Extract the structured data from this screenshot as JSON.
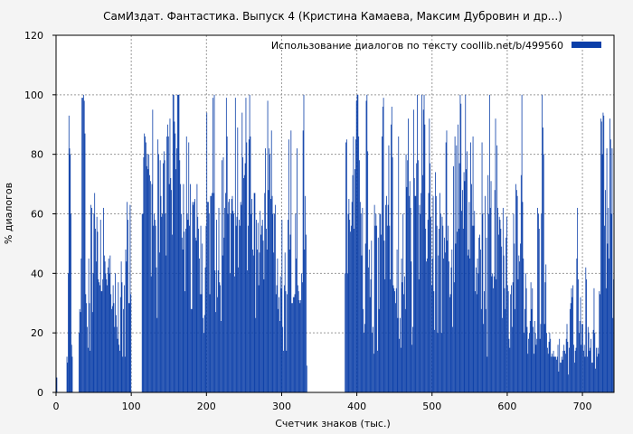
{
  "chart_data": {
    "type": "bar",
    "title": "СамИздат. Фантастика. Выпуск 4 (Кристина Камаева, Максим Дубровин и др...)",
    "xlabel": "Счетчик знаков (тыс.)",
    "ylabel": "% диалогов",
    "xlim": [
      0,
      742
    ],
    "ylim": [
      0,
      120
    ],
    "xticks": [
      0,
      100,
      200,
      300,
      400,
      500,
      600,
      700
    ],
    "yticks": [
      0,
      20,
      40,
      60,
      80,
      100,
      120
    ],
    "grid": true,
    "legend_position": "top-right",
    "bar_color": "#0a3ea8",
    "series": [
      {
        "name": "Использование диалогов по тексту  coollib.net/b/499560",
        "segments": [
          {
            "x_start": 0,
            "x_end": 2,
            "values": [
              5
            ]
          },
          {
            "x_start": 14,
            "x_end": 22,
            "values": [
              12,
              10,
              40,
              93,
              82,
              80,
              60,
              16,
              12
            ]
          },
          {
            "x_start": 30,
            "x_end": 43,
            "values": [
              20,
              28,
              27,
              45,
              99,
              99,
              100,
              98,
              87,
              33,
              30,
              22,
              15
            ]
          },
          {
            "x_start": 43,
            "x_end": 100,
            "values": [
              45,
              30,
              14,
              63,
              62,
              27,
              40,
              60,
              67,
              55,
              44,
              59,
              54,
              38,
              37,
              36,
              58,
              34,
              34,
              38,
              62,
              46,
              44,
              40,
              38,
              36,
              42,
              45,
              40,
              46,
              33,
              28,
              29,
              36,
              30,
              22,
              40,
              26,
              22,
              18,
              37,
              16,
              14,
              32,
              44,
              37,
              12,
              28,
              36,
              12,
              48,
              44,
              64,
              58,
              30,
              30,
              63,
              33
            ]
          },
          {
            "x_start": 114,
            "x_end": 200,
            "values": [
              60,
              60,
              79,
              87,
              86,
              84,
              76,
              80,
              75,
              80,
              73,
              71,
              39,
              70,
              95,
              56,
              60,
              58,
              56,
              42,
              25,
              85,
              80,
              47,
              78,
              66,
              59,
              60,
              77,
              81,
              78,
              60,
              46,
              86,
              90,
              86,
              70,
              92,
              72,
              68,
              53,
              100,
              100,
              91,
              87,
              75,
              82,
              100,
              100,
              100,
              78,
              70,
              60,
              52,
              48,
              70,
              54,
              34,
              55,
              86,
              60,
              58,
              84,
              56,
              70,
              28,
              28,
              64,
              63,
              64,
              65,
              52,
              51,
              70,
              59,
              55,
              45,
              33,
              56,
              33,
              50,
              25,
              20,
              26,
              42,
              56
            ]
          },
          {
            "x_start": 200,
            "x_end": 334,
            "values": [
              94,
              64,
              64,
              60,
              33,
              66,
              66,
              67,
              99,
              67,
              100,
              41,
              27,
              58,
              32,
              41,
              62,
              37,
              36,
              24,
              78,
              46,
              79,
              52,
              62,
              67,
              99,
              86,
              60,
              64,
              65,
              40,
              60,
              65,
              66,
              61,
              60,
              39,
              99,
              56,
              59,
              89,
              42,
              58,
              56,
              64,
              63,
              94,
              79,
              72,
              73,
              77,
              99,
              84,
              41,
              56,
              85,
              100,
              86,
              60,
              65,
              48,
              46,
              67,
              67,
              25,
              58,
              48,
              57,
              36,
              47,
              61,
              53,
              56,
              58,
              51,
              38,
              67,
              82,
              55,
              48,
              98,
              68,
              82,
              80,
              65,
              88,
              66,
              60,
              47,
              60,
              63,
              33,
              36,
              45,
              28,
              32,
              24,
              39,
              35,
              58,
              22,
              14,
              36,
              47,
              34,
              14,
              33,
              58,
              85,
              48,
              53,
              88,
              30,
              30,
              32,
              32,
              33,
              60,
              45,
              82,
              36,
              34,
              31,
              30,
              31,
              40,
              37,
              88,
              100,
              48,
              66,
              53,
              9
            ]
          },
          {
            "x_start": 384,
            "x_end": 470,
            "values": [
              40,
              84,
              85,
              40,
              60,
              65,
              58,
              54,
              56,
              64,
              73,
              86,
              55,
              75,
              85,
              98,
              100,
              100,
              86,
              78,
              64,
              60,
              46,
              62,
              28,
              20,
              23,
              50,
              98,
              100,
              81,
              42,
              48,
              32,
              38,
              51,
              20,
              22,
              13,
              63,
              56,
              60,
              56,
              14,
              52,
              28,
              60,
              60,
              53,
              86,
              96,
              99,
              51,
              38,
              63,
              66,
              56,
              63,
              83,
              56,
              38,
              90,
              96,
              79,
              36,
              35,
              34,
              30,
              35,
              48,
              25,
              86,
              18,
              25,
              15,
              45,
              37,
              60,
              33,
              39,
              28,
              80,
              69,
              78,
              92,
              66
            ]
          },
          {
            "x_start": 470,
            "x_end": 560,
            "values": [
              71,
              62,
              44,
              16,
              22,
              95,
              72,
              66,
              66,
              77,
              100,
              78,
              38,
              63,
              60,
              67,
              100,
              73,
              95,
              100,
              90,
              55,
              44,
              45,
              58,
              67,
              92,
              77,
              59,
              36,
              45,
              66,
              34,
              21,
              74,
              66,
              56,
              20,
              46,
              55,
              67,
              60,
              20,
              59,
              56,
              45,
              52,
              47,
              84,
              88,
              51,
              56,
              44,
              32,
              33,
              42,
              48,
              22,
              76,
              37,
              86,
              50,
              83,
              54,
              90,
              55,
              77,
              100,
              97,
              61,
              68,
              55,
              74,
              71,
              100,
              75,
              81,
              46,
              48,
              64,
              45,
              84,
              70,
              56,
              86,
              56,
              61,
              34,
              42,
              33
            ]
          },
          {
            "x_start": 560,
            "x_end": 640,
            "values": [
              45,
              40,
              52,
              53,
              48,
              28,
              84,
              60,
              23,
              34,
              66,
              28,
              52,
              12,
              73,
              60,
              100,
              62,
              71,
              39,
              40,
              35,
              39,
              68,
              92,
              38,
              83,
              62,
              53,
              59,
              58,
              55,
              49,
              25,
              62,
              46,
              35,
              28,
              52,
              59,
              36,
              34,
              18,
              15,
              33,
              36,
              22,
              37,
              60,
              50,
              28,
              70,
              68,
              66,
              38,
              46,
              44,
              50,
              73,
              100,
              64,
              45,
              20,
              28,
              40,
              35,
              22,
              13,
              18,
              20,
              24,
              37,
              28,
              35,
              22,
              13,
              24,
              20,
              16,
              18
            ]
          },
          {
            "x_start": 640,
            "x_end": 742,
            "values": [
              62,
              60,
              55,
              18,
              23,
              60,
              100,
              89,
              80,
              23,
              37,
              43,
              20,
              15,
              13,
              17,
              20,
              18,
              12,
              13,
              12,
              14,
              12,
              12,
              12,
              11,
              12,
              16,
              7,
              18,
              10,
              10,
              12,
              11,
              14,
              16,
              14,
              13,
              18,
              23,
              17,
              6,
              15,
              28,
              30,
              35,
              32,
              36,
              16,
              10,
              14,
              15,
              45,
              62,
              38,
              20,
              24,
              32,
              16,
              23,
              23,
              14,
              16,
              12,
              42,
              38,
              12,
              22,
              20,
              14,
              15,
              18,
              10,
              10,
              21,
              35,
              20,
              8,
              15,
              12,
              15,
              13,
              34,
              33,
              92,
              91,
              80,
              94,
              93,
              56,
              68,
              35,
              82,
              50,
              62,
              45,
              92,
              85,
              60,
              82,
              25,
              38
            ]
          }
        ]
      }
    ]
  }
}
